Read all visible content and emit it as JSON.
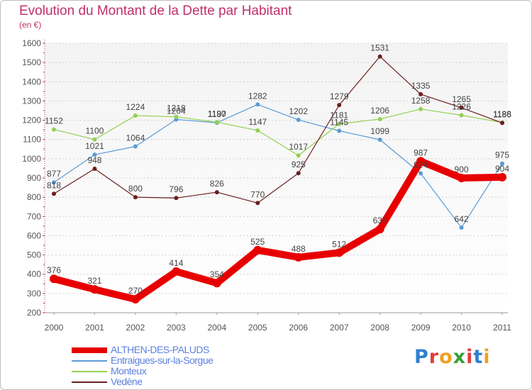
{
  "header": {
    "title": "Evolution du Montant de la Dette par Habitant",
    "subtitle": "(en €)"
  },
  "logo": {
    "text": "Proxiti",
    "letters": [
      "P",
      "r",
      "o",
      "x",
      "i",
      "t",
      "i"
    ],
    "colors": [
      "#2f7fd0",
      "#e33c3c",
      "#f0a020",
      "#3aa03a",
      "#e33c3c",
      "#2f7fd0",
      "#f0a020"
    ]
  },
  "chart_data": {
    "type": "line",
    "title": "Evolution du Montant de la Dette par Habitant",
    "subtitle": "(en €)",
    "xlabel": "",
    "ylabel": "",
    "x": [
      "2000",
      "2001",
      "2002",
      "2003",
      "2004",
      "2005",
      "2006",
      "2007",
      "2008",
      "2009",
      "2010",
      "2011"
    ],
    "ylim": [
      200,
      1600
    ],
    "yticks": [
      200,
      300,
      400,
      500,
      600,
      700,
      800,
      900,
      1000,
      1100,
      1200,
      1300,
      1400,
      1500,
      1600
    ],
    "grid": "horizontal dashed",
    "legend_position": "bottom-left",
    "series": [
      {
        "name": "ALTHEN-DES-PALUDS",
        "color": "#e80000",
        "emphasis": "thick",
        "values": [
          376,
          321,
          270,
          414,
          354,
          525,
          488,
          512,
          634,
          987,
          900,
          904
        ]
      },
      {
        "name": "Entraigues-sur-la-Sorgue",
        "color": "#5b9bd5",
        "values": [
          877,
          1021,
          1064,
          1204,
          1187,
          1282,
          1202,
          1145,
          1099,
          924,
          642,
          975
        ]
      },
      {
        "name": "Monteux",
        "color": "#92d050",
        "values": [
          1152,
          1100,
          1224,
          1218,
          1190,
          1147,
          1017,
          1181,
          1206,
          1258,
          1226,
          1188
        ]
      },
      {
        "name": "Vedène",
        "color": "#6b1f1f",
        "values": [
          818,
          948,
          800,
          796,
          826,
          770,
          925,
          1279,
          1531,
          1335,
          1265,
          1186
        ]
      }
    ]
  }
}
